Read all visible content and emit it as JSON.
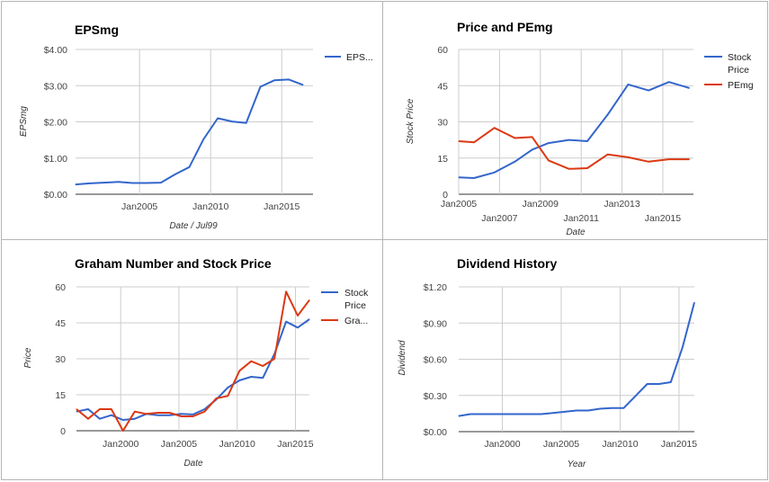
{
  "colors": {
    "blue": "#3366cc",
    "red": "#dc3912"
  },
  "chart_data": [
    {
      "type": "line",
      "title": "EPSmg",
      "xlabel": "Date / Jul99",
      "ylabel": "EPSmg",
      "x_tick_labels": [
        "Jan2005",
        "Jan2010",
        "Jan2015"
      ],
      "y_tick_labels": [
        "$4.00",
        "$3.00",
        "$2.00",
        "$1.00",
        "$0.00"
      ],
      "xlim": [
        2000.5,
        2017.2
      ],
      "ylim": [
        0,
        4
      ],
      "legend": "right",
      "x_ticks": [
        2005,
        2010,
        2015
      ],
      "y_ticks": [
        4,
        3,
        2,
        1,
        0
      ],
      "series": [
        {
          "name": "EPS...",
          "color": "#3366cc",
          "x": [
            2000.5,
            2001.5,
            2002.5,
            2003.5,
            2004.5,
            2005.5,
            2006.5,
            2007.5,
            2008.5,
            2009.5,
            2010.5,
            2011.5,
            2012.5,
            2013.5,
            2014.5,
            2015.5,
            2016.5
          ],
          "values": [
            0.27,
            0.3,
            0.32,
            0.34,
            0.31,
            0.31,
            0.32,
            0.55,
            0.75,
            1.52,
            2.1,
            2.01,
            1.97,
            2.97,
            3.15,
            3.17,
            3.02
          ]
        }
      ]
    },
    {
      "type": "line",
      "title": "Price and PEmg",
      "xlabel": "Date",
      "ylabel": "Stock Price",
      "x_tick_labels": [
        "Jan2005",
        "Jan2007",
        "Jan2009",
        "Jan2011",
        "Jan2013",
        "Jan2015"
      ],
      "y_tick_labels": [
        "60",
        "45",
        "30",
        "15",
        "0"
      ],
      "xlim": [
        2005,
        2016.5
      ],
      "ylim": [
        0,
        60
      ],
      "legend": "right",
      "x_ticks": [
        2005,
        2007,
        2009,
        2011,
        2013,
        2015
      ],
      "y_ticks": [
        60,
        45,
        30,
        15,
        0
      ],
      "series": [
        {
          "name": "Stock Price",
          "color": "#3366cc",
          "x": [
            2005,
            2005.75,
            2006.75,
            2007.75,
            2008.6,
            2009.4,
            2010.4,
            2011.3,
            2012.3,
            2013.3,
            2014.3,
            2015.3,
            2016.3
          ],
          "values": [
            7,
            6.7,
            9,
            13.5,
            18.5,
            21.2,
            22.5,
            22,
            33,
            45.5,
            43,
            46.5,
            44
          ]
        },
        {
          "name": "PEmg",
          "color": "#dc3912",
          "x": [
            2005,
            2005.75,
            2006.75,
            2007.75,
            2008.6,
            2009.4,
            2010.4,
            2011.3,
            2012.3,
            2013.3,
            2014.3,
            2015.3,
            2016.3
          ],
          "values": [
            22,
            21.5,
            27.5,
            23.3,
            23.7,
            14,
            10.5,
            10.8,
            16.5,
            15.3,
            13.5,
            14.5,
            14.5
          ]
        }
      ]
    },
    {
      "type": "line",
      "title": "Graham Number and Stock Price",
      "xlabel": "Date",
      "ylabel": "Price",
      "x_tick_labels": [
        "Jan2000",
        "Jan2005",
        "Jan2010",
        "Jan2015"
      ],
      "y_tick_labels": [
        "60",
        "45",
        "30",
        "15",
        "0"
      ],
      "xlim": [
        1996.2,
        2016.2
      ],
      "ylim": [
        0,
        60
      ],
      "legend": "right",
      "x_ticks": [
        2000,
        2005,
        2010,
        2015
      ],
      "y_ticks": [
        60,
        45,
        30,
        15,
        0
      ],
      "series": [
        {
          "name": "Stock Price",
          "color": "#3366cc",
          "x": [
            1996.2,
            1997.2,
            1998.2,
            1999.2,
            2000.2,
            2001.2,
            2002.2,
            2003.2,
            2004.2,
            2005.2,
            2006.2,
            2007.2,
            2008.2,
            2009.2,
            2010.2,
            2011.2,
            2012.2,
            2013.2,
            2014.2,
            2015.2,
            2016.2
          ],
          "values": [
            8,
            9,
            5,
            6.5,
            4.5,
            5,
            7,
            6.5,
            6.5,
            7,
            6.8,
            9,
            13,
            18,
            21,
            22.5,
            22,
            32,
            45.5,
            43,
            46.5
          ]
        },
        {
          "name": "Gra...",
          "color": "#dc3912",
          "x": [
            1996.2,
            1997.2,
            1998.2,
            1999.2,
            2000.2,
            2001.2,
            2002.2,
            2003.2,
            2004.2,
            2005.2,
            2006.2,
            2007.2,
            2008.2,
            2009.2,
            2010.2,
            2011.2,
            2012.2,
            2013.2,
            2014.2,
            2015.2,
            2016.2
          ],
          "values": [
            9,
            5,
            9,
            9,
            0,
            8,
            7,
            7.5,
            7.5,
            6,
            6,
            8,
            13.5,
            14.5,
            25,
            29,
            27,
            30,
            58,
            48,
            54.5
          ]
        }
      ]
    },
    {
      "type": "line",
      "title": "Dividend History",
      "xlabel": "Year",
      "ylabel": "Dividend",
      "x_tick_labels": [
        "Jan2000",
        "Jan2005",
        "Jan2010",
        "Jan2015"
      ],
      "y_tick_labels": [
        "$1.20",
        "$0.90",
        "$0.60",
        "$0.30",
        "$0.00"
      ],
      "xlim": [
        1996.3,
        2016.3
      ],
      "ylim": [
        0,
        1.2
      ],
      "legend": "none",
      "x_ticks": [
        2000,
        2005,
        2010,
        2015
      ],
      "y_ticks": [
        1.2,
        0.9,
        0.6,
        0.3,
        0
      ],
      "series": [
        {
          "name": "",
          "color": "#3366cc",
          "x": [
            1996.3,
            1997.3,
            1998.3,
            1999.3,
            2000.3,
            2001.3,
            2002.3,
            2003.3,
            2004.3,
            2005.3,
            2006.3,
            2007.3,
            2008.3,
            2009.3,
            2010.3,
            2011.3,
            2012.3,
            2013.3,
            2014.3,
            2015.3,
            2016.3
          ],
          "values": [
            0.13,
            0.145,
            0.145,
            0.145,
            0.145,
            0.145,
            0.145,
            0.145,
            0.155,
            0.165,
            0.175,
            0.175,
            0.19,
            0.195,
            0.195,
            0.295,
            0.395,
            0.395,
            0.41,
            0.7,
            1.07
          ]
        }
      ]
    }
  ]
}
